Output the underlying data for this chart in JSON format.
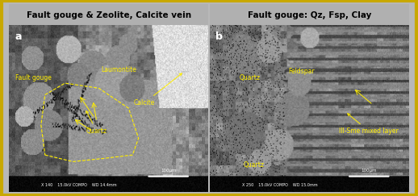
{
  "title_left": "Fault gouge & Zeolite, Calcite vein",
  "title_right": "Fault gouge: Qz, Fsp, Clay",
  "label_a": "a",
  "label_b": "b",
  "border_color": "#C8A800",
  "title_bg_color": "#B0B0B0",
  "title_fontsize": 7.5,
  "label_fontsize": 9,
  "annotation_color": "#FFEE00",
  "annotation_fontsize": 5.5,
  "sem_metadata_left": "X 140    15.0kV COMPO    WD 14.4mm",
  "sem_metadata_right": "X 250    15.0kV COMPO    WD 15.0mm",
  "scale_label": "100μm",
  "figure_bg": "#B8B8B8"
}
